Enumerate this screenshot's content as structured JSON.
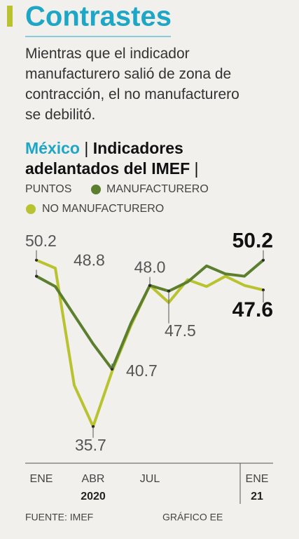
{
  "chart_data": {
    "type": "line",
    "title": "Contrastes",
    "subtitle": "Mientras que el indicador manufacturero salió de zona de contracción, el no manufacturero se debilitó.",
    "header_country": "México",
    "header_title": "Indicadores adelantados del IMEF",
    "y_label": "PUNTOS",
    "categories": [
      "ENE",
      null,
      null,
      "ABR",
      null,
      null,
      "JUL",
      null,
      null,
      null,
      null,
      null,
      "ENE"
    ],
    "years": [
      "2020",
      "21"
    ],
    "series": [
      {
        "name": "MANUFACTURERO",
        "color": "#5b7f2f",
        "values": [
          48.8,
          47.9,
          45.4,
          42.9,
          40.7,
          44.7,
          48.0,
          47.5,
          48.3,
          49.7,
          49.0,
          48.8,
          50.2
        ],
        "value_labels": [
          "48.8",
          null,
          null,
          null,
          "40.7",
          null,
          "48.0",
          "47.5",
          null,
          null,
          null,
          null,
          "50.2"
        ]
      },
      {
        "name": "NO MANUFACTURERO",
        "color": "#b9c330",
        "values": [
          50.2,
          49.5,
          39.3,
          35.7,
          40.5,
          44.5,
          48.0,
          46.5,
          48.5,
          47.9,
          48.8,
          48.0,
          47.6
        ],
        "value_labels": [
          "50.2",
          null,
          null,
          "35.7",
          null,
          null,
          null,
          null,
          null,
          null,
          null,
          null,
          "47.6"
        ]
      }
    ],
    "ylim": [
      32.5,
      53.3
    ],
    "source": "FUENTE: IMEF",
    "credit": "GRÁFICO EE"
  }
}
